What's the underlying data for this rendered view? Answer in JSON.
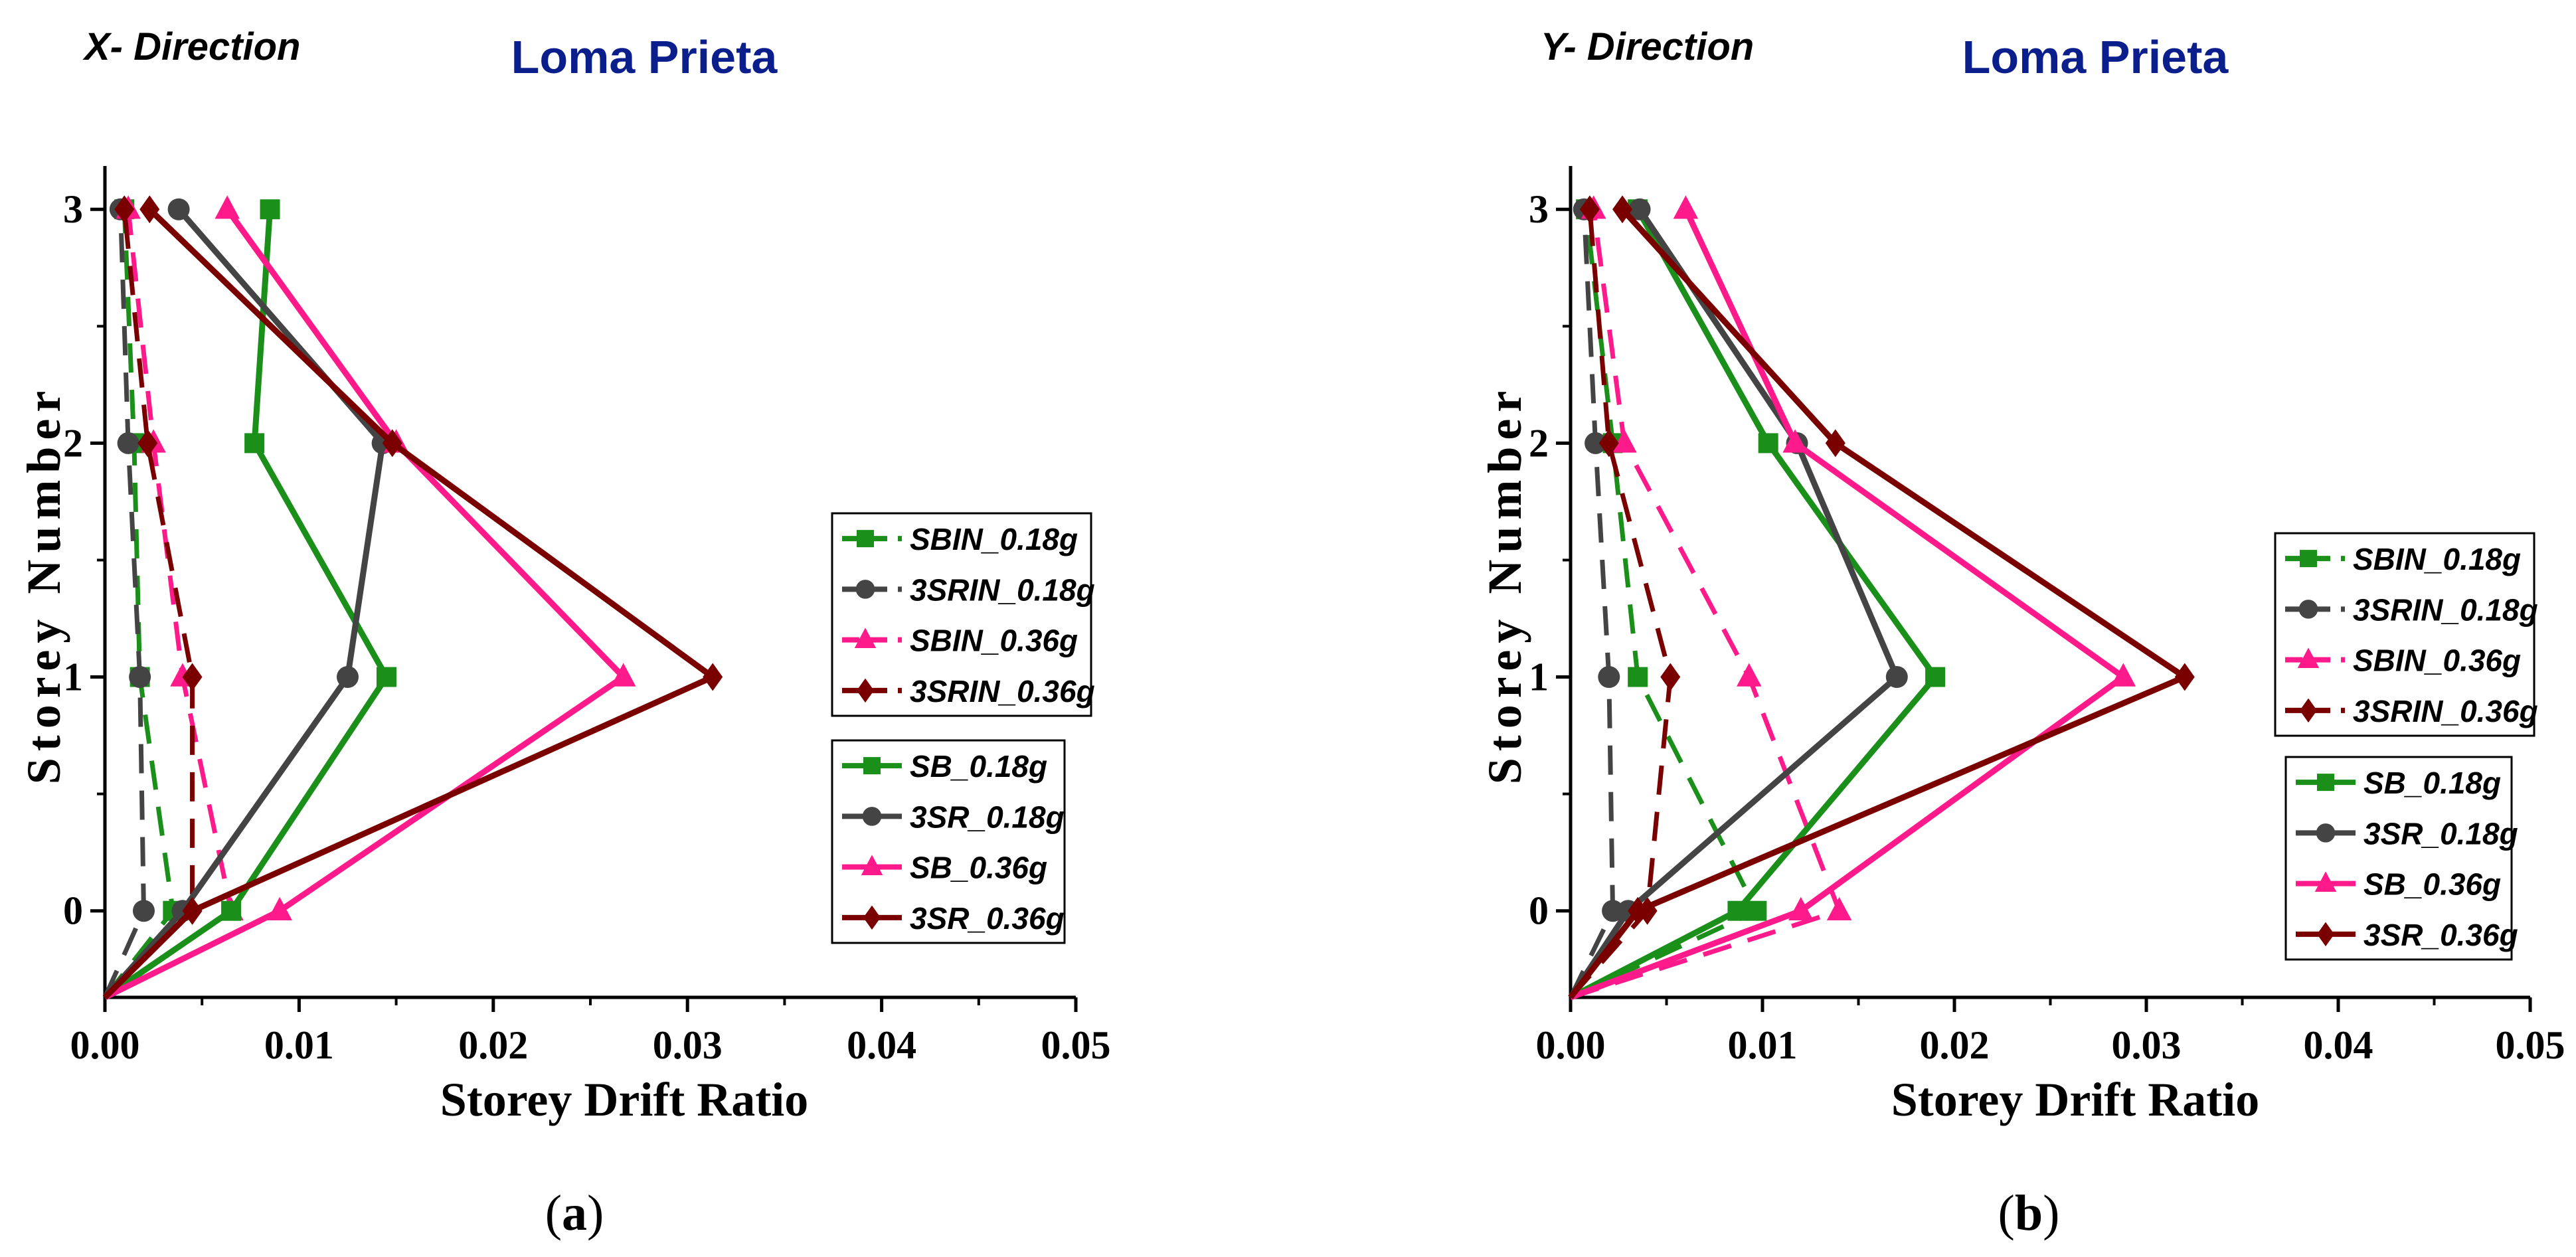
{
  "figure": {
    "colors": {
      "green": "#1a8f1a",
      "gray": "#444444",
      "pink": "#ff1a8c",
      "maroon": "#7a0000",
      "title": "#0b1f8c",
      "axis": "#000000"
    },
    "panels": [
      {
        "id": "a",
        "direction_label": "X- Direction",
        "caption_letter": "a",
        "chart_data": {
          "type": "line",
          "title": "Loma Prieta",
          "xlabel": "Storey Drift Ratio",
          "ylabel": "Storey Number",
          "xlim": [
            0,
            0.05
          ],
          "ylim": [
            -0.37,
            3.1
          ],
          "xticks": [
            0,
            0.01,
            0.02,
            0.03,
            0.04,
            0.05
          ],
          "xtick_labels": [
            "0.00",
            "0.01",
            "0.02",
            "0.03",
            "0.04",
            "0.05"
          ],
          "yticks": [
            0,
            1,
            2,
            3
          ],
          "ytick_labels": [
            "0",
            "1",
            "2",
            "3"
          ],
          "legend_top": [
            "SBIN_0.18g",
            "3SRIN_0.18g",
            "SBIN_0.36g",
            "3SRIN_0.36g"
          ],
          "legend_bottom": [
            "SB_0.18g",
            "3SR_0.18g",
            "SB_0.36g",
            "3SR_0.36g"
          ],
          "series": [
            {
              "name": "SBIN_0.18g",
              "color": "green",
              "dash": true,
              "marker": "square",
              "points": [
                [
                  0.0,
                  -0.37
                ],
                [
                  0.0035,
                  0
                ],
                [
                  0.0018,
                  1
                ],
                [
                  0.0015,
                  2
                ],
                [
                  0.001,
                  3
                ]
              ]
            },
            {
              "name": "3SRIN_0.18g",
              "color": "gray",
              "dash": true,
              "marker": "circle",
              "points": [
                [
                  0.0,
                  -0.37
                ],
                [
                  0.002,
                  0
                ],
                [
                  0.0018,
                  1
                ],
                [
                  0.0012,
                  2
                ],
                [
                  0.0008,
                  3
                ]
              ]
            },
            {
              "name": "SBIN_0.36g",
              "color": "pink",
              "dash": true,
              "marker": "triangle",
              "points": [
                [
                  0.0,
                  -0.37
                ],
                [
                  0.0065,
                  0
                ],
                [
                  0.004,
                  1
                ],
                [
                  0.0025,
                  2
                ],
                [
                  0.0012,
                  3
                ]
              ]
            },
            {
              "name": "3SRIN_0.36g",
              "color": "maroon",
              "dash": true,
              "marker": "diamond",
              "points": [
                [
                  0.0,
                  -0.37
                ],
                [
                  0.0045,
                  0
                ],
                [
                  0.0045,
                  1
                ],
                [
                  0.0022,
                  2
                ],
                [
                  0.001,
                  3
                ]
              ]
            },
            {
              "name": "SB_0.18g",
              "color": "green",
              "dash": false,
              "marker": "square",
              "points": [
                [
                  0.0,
                  -0.37
                ],
                [
                  0.0065,
                  0
                ],
                [
                  0.0145,
                  1
                ],
                [
                  0.0077,
                  2
                ],
                [
                  0.0085,
                  3
                ]
              ]
            },
            {
              "name": "3SR_0.18g",
              "color": "gray",
              "dash": false,
              "marker": "circle",
              "points": [
                [
                  0.0,
                  -0.37
                ],
                [
                  0.004,
                  0
                ],
                [
                  0.0125,
                  1
                ],
                [
                  0.0143,
                  2
                ],
                [
                  0.0038,
                  3
                ]
              ]
            },
            {
              "name": "SB_0.36g",
              "color": "pink",
              "dash": false,
              "marker": "triangle",
              "points": [
                [
                  0.0,
                  -0.37
                ],
                [
                  0.009,
                  0
                ],
                [
                  0.0267,
                  1
                ],
                [
                  0.015,
                  2
                ],
                [
                  0.0063,
                  3
                ]
              ]
            },
            {
              "name": "3SR_0.36g",
              "color": "maroon",
              "dash": false,
              "marker": "diamond",
              "points": [
                [
                  0.0,
                  -0.37
                ],
                [
                  0.0045,
                  0
                ],
                [
                  0.0313,
                  1
                ],
                [
                  0.0148,
                  2
                ],
                [
                  0.0023,
                  3
                ]
              ]
            }
          ]
        }
      },
      {
        "id": "b",
        "direction_label": "Y- Direction",
        "caption_letter": "b",
        "chart_data": {
          "type": "line",
          "title": "Loma Prieta",
          "xlabel": "Storey Drift Ratio",
          "ylabel": "Storey Number",
          "xlim": [
            0,
            0.05
          ],
          "ylim": [
            -0.37,
            3.1
          ],
          "xticks": [
            0,
            0.01,
            0.02,
            0.03,
            0.04,
            0.05
          ],
          "xtick_labels": [
            "0.00",
            "0.01",
            "0.02",
            "0.03",
            "0.04",
            "0.05"
          ],
          "yticks": [
            0,
            1,
            2,
            3
          ],
          "ytick_labels": [
            "0",
            "1",
            "2",
            "3"
          ],
          "legend_top": [
            "SBIN_0.18g",
            "3SRIN_0.18g",
            "SBIN_0.36g",
            "3SRIN_0.36g"
          ],
          "legend_bottom": [
            "SB_0.18g",
            "3SR_0.18g",
            "SB_0.36g",
            "3SR_0.36g"
          ],
          "series": [
            {
              "name": "SBIN_0.18g",
              "color": "green",
              "dash": true,
              "marker": "square",
              "points": [
                [
                  0.0,
                  -0.37
                ],
                [
                  0.0097,
                  0
                ],
                [
                  0.0035,
                  1
                ],
                [
                  0.0022,
                  2
                ],
                [
                  0.0008,
                  3
                ]
              ]
            },
            {
              "name": "3SRIN_0.18g",
              "color": "gray",
              "dash": true,
              "marker": "circle",
              "points": [
                [
                  0.0,
                  -0.37
                ],
                [
                  0.0022,
                  0
                ],
                [
                  0.002,
                  1
                ],
                [
                  0.0013,
                  2
                ],
                [
                  0.0007,
                  3
                ]
              ]
            },
            {
              "name": "SBIN_0.36g",
              "color": "pink",
              "dash": true,
              "marker": "triangle",
              "points": [
                [
                  0.0,
                  -0.37
                ],
                [
                  0.014,
                  0
                ],
                [
                  0.0093,
                  1
                ],
                [
                  0.0028,
                  2
                ],
                [
                  0.0012,
                  3
                ]
              ]
            },
            {
              "name": "3SRIN_0.36g",
              "color": "maroon",
              "dash": true,
              "marker": "diamond",
              "points": [
                [
                  0.0,
                  -0.37
                ],
                [
                  0.004,
                  0
                ],
                [
                  0.0052,
                  1
                ],
                [
                  0.002,
                  2
                ],
                [
                  0.001,
                  3
                ]
              ]
            },
            {
              "name": "SB_0.18g",
              "color": "green",
              "dash": false,
              "marker": "square",
              "points": [
                [
                  0.0,
                  -0.37
                ],
                [
                  0.0087,
                  0
                ],
                [
                  0.019,
                  1
                ],
                [
                  0.0103,
                  2
                ],
                [
                  0.0035,
                  3
                ]
              ]
            },
            {
              "name": "3SR_0.18g",
              "color": "gray",
              "dash": false,
              "marker": "circle",
              "points": [
                [
                  0.0,
                  -0.37
                ],
                [
                  0.003,
                  0
                ],
                [
                  0.017,
                  1
                ],
                [
                  0.0118,
                  2
                ],
                [
                  0.0036,
                  3
                ]
              ]
            },
            {
              "name": "SB_0.36g",
              "color": "pink",
              "dash": false,
              "marker": "triangle",
              "points": [
                [
                  0.0,
                  -0.37
                ],
                [
                  0.012,
                  0
                ],
                [
                  0.0288,
                  1
                ],
                [
                  0.0117,
                  2
                ],
                [
                  0.006,
                  3
                ]
              ]
            },
            {
              "name": "3SR_0.36g",
              "color": "maroon",
              "dash": false,
              "marker": "diamond",
              "points": [
                [
                  0.0,
                  -0.37
                ],
                [
                  0.0035,
                  0
                ],
                [
                  0.032,
                  1
                ],
                [
                  0.0138,
                  2
                ],
                [
                  0.0027,
                  3
                ]
              ]
            }
          ]
        }
      }
    ]
  }
}
